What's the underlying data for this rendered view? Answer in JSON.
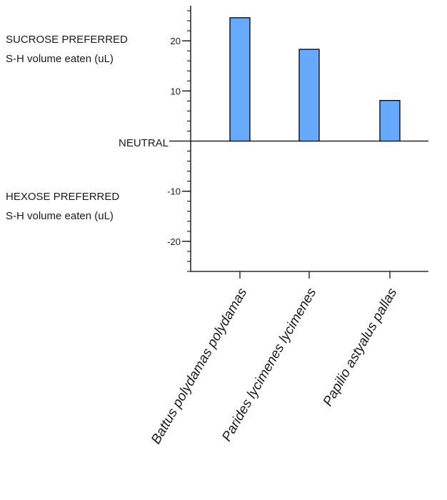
{
  "chart_data": {
    "type": "bar",
    "categories": [
      "Battus polydamas polydamas",
      "Parides lycimenes lycimenes",
      "Papilio astyalus pallas"
    ],
    "values": [
      24.6,
      18.3,
      8.1
    ],
    "ylim": [
      -26,
      27
    ],
    "yticks": [
      -20,
      -10,
      0,
      10,
      20
    ],
    "ytick_labels": [
      "-20",
      "-10",
      "",
      "10",
      "20"
    ],
    "minor_tick_step": 2,
    "bar_color": "#66aaff",
    "bar_edge_color": "#000000",
    "grid": false,
    "annotations": {
      "sucrose_line1": "SUCROSE PREFERRED",
      "sucrose_line2": "S-H volume eaten (uL)",
      "neutral": "NEUTRAL",
      "hexose_line1": "HEXOSE PREFERRED",
      "hexose_line2": "S-H volume eaten (uL)"
    }
  }
}
